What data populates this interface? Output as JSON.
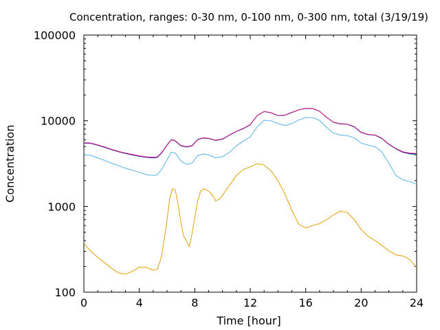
{
  "chart_data": {
    "type": "line",
    "title": "Concentration, ranges: 0-30 nm, 0-100 nm, 0-300 nm, total (3/19/19)",
    "xlabel": "Time [hour]",
    "ylabel": "Concentration",
    "xlim": [
      0,
      24
    ],
    "ylim": [
      100,
      100000
    ],
    "yscale": "log",
    "grid": false,
    "x_ticks": [
      0,
      4,
      8,
      12,
      16,
      20,
      24
    ],
    "x_tick_labels": [
      "0",
      "4",
      "8",
      "12",
      "16",
      "20",
      "24"
    ],
    "y_ticks": [
      100,
      1000,
      10000,
      100000
    ],
    "y_tick_labels": [
      "100",
      "1000",
      "10000",
      "100000"
    ],
    "series": [
      {
        "color": "#e69f00",
        "points": [
          [
            0,
            370
          ],
          [
            0.5,
            300
          ],
          [
            1,
            255
          ],
          [
            1.5,
            220
          ],
          [
            2,
            190
          ],
          [
            2.5,
            168
          ],
          [
            3,
            162
          ],
          [
            3.5,
            175
          ],
          [
            4,
            196
          ],
          [
            4.5,
            195
          ],
          [
            5,
            180
          ],
          [
            5.3,
            185
          ],
          [
            5.6,
            260
          ],
          [
            5.8,
            420
          ],
          [
            6,
            700
          ],
          [
            6.2,
            1250
          ],
          [
            6.4,
            1620
          ],
          [
            6.6,
            1550
          ],
          [
            6.8,
            1050
          ],
          [
            7,
            650
          ],
          [
            7.2,
            450
          ],
          [
            7.4,
            400
          ],
          [
            7.6,
            340
          ],
          [
            7.8,
            480
          ],
          [
            8,
            750
          ],
          [
            8.2,
            1150
          ],
          [
            8.4,
            1480
          ],
          [
            8.6,
            1600
          ],
          [
            8.8,
            1580
          ],
          [
            9,
            1500
          ],
          [
            9.3,
            1350
          ],
          [
            9.5,
            1160
          ],
          [
            9.8,
            1230
          ],
          [
            10,
            1350
          ],
          [
            10.3,
            1600
          ],
          [
            10.6,
            1850
          ],
          [
            11,
            2300
          ],
          [
            11.5,
            2700
          ],
          [
            12,
            2900
          ],
          [
            12.5,
            3150
          ],
          [
            13,
            3050
          ],
          [
            13.5,
            2600
          ],
          [
            14,
            2000
          ],
          [
            14.5,
            1400
          ],
          [
            15,
            900
          ],
          [
            15.5,
            620
          ],
          [
            16,
            560
          ],
          [
            16.5,
            600
          ],
          [
            17,
            630
          ],
          [
            17.5,
            700
          ],
          [
            18,
            800
          ],
          [
            18.5,
            880
          ],
          [
            19,
            850
          ],
          [
            19.5,
            700
          ],
          [
            20,
            540
          ],
          [
            20.5,
            450
          ],
          [
            21,
            400
          ],
          [
            21.5,
            350
          ],
          [
            22,
            305
          ],
          [
            22.5,
            272
          ],
          [
            23,
            265
          ],
          [
            23.5,
            240
          ],
          [
            24,
            195
          ]
        ]
      },
      {
        "color": "#56b4e9",
        "points": [
          [
            0,
            4000
          ],
          [
            0.5,
            3950
          ],
          [
            1,
            3700
          ],
          [
            1.5,
            3450
          ],
          [
            2,
            3200
          ],
          [
            2.5,
            3000
          ],
          [
            3,
            2800
          ],
          [
            3.5,
            2650
          ],
          [
            4,
            2500
          ],
          [
            4.5,
            2350
          ],
          [
            5,
            2300
          ],
          [
            5.3,
            2350
          ],
          [
            5.6,
            2700
          ],
          [
            6,
            3500
          ],
          [
            6.3,
            4300
          ],
          [
            6.6,
            4200
          ],
          [
            7,
            3400
          ],
          [
            7.4,
            3100
          ],
          [
            7.8,
            3200
          ],
          [
            8.2,
            3900
          ],
          [
            8.6,
            4100
          ],
          [
            9,
            4000
          ],
          [
            9.5,
            3700
          ],
          [
            10,
            3800
          ],
          [
            10.5,
            4300
          ],
          [
            11,
            5100
          ],
          [
            11.5,
            5800
          ],
          [
            12,
            6500
          ],
          [
            12.5,
            8500
          ],
          [
            13,
            10100
          ],
          [
            13.5,
            10000
          ],
          [
            14,
            9300
          ],
          [
            14.5,
            8800
          ],
          [
            15,
            9300
          ],
          [
            15.5,
            10200
          ],
          [
            16,
            10900
          ],
          [
            16.5,
            10900
          ],
          [
            17,
            10100
          ],
          [
            17.5,
            8400
          ],
          [
            18,
            7200
          ],
          [
            18.5,
            6800
          ],
          [
            19,
            6700
          ],
          [
            19.5,
            6300
          ],
          [
            20,
            5500
          ],
          [
            20.5,
            5200
          ],
          [
            21,
            5000
          ],
          [
            21.5,
            4300
          ],
          [
            22,
            3200
          ],
          [
            22.5,
            2300
          ],
          [
            23,
            2050
          ],
          [
            23.5,
            1950
          ],
          [
            24,
            1830
          ]
        ]
      },
      {
        "color": "#009e73",
        "points": [
          [
            0,
            5500
          ],
          [
            0.5,
            5450
          ],
          [
            1,
            5200
          ],
          [
            1.5,
            4900
          ],
          [
            2,
            4600
          ],
          [
            2.5,
            4350
          ],
          [
            3,
            4150
          ],
          [
            3.5,
            4000
          ],
          [
            4,
            3850
          ],
          [
            4.5,
            3750
          ],
          [
            5,
            3700
          ],
          [
            5.3,
            3750
          ],
          [
            5.6,
            4200
          ],
          [
            6,
            5200
          ],
          [
            6.3,
            6000
          ],
          [
            6.6,
            5800
          ],
          [
            7,
            5100
          ],
          [
            7.4,
            4950
          ],
          [
            7.8,
            5100
          ],
          [
            8.2,
            6000
          ],
          [
            8.6,
            6300
          ],
          [
            9,
            6200
          ],
          [
            9.5,
            5900
          ],
          [
            10,
            6100
          ],
          [
            10.5,
            6800
          ],
          [
            11,
            7500
          ],
          [
            11.5,
            8100
          ],
          [
            12,
            9000
          ],
          [
            12.5,
            11500
          ],
          [
            13,
            12800
          ],
          [
            13.5,
            12400
          ],
          [
            14,
            11500
          ],
          [
            14.5,
            11600
          ],
          [
            15,
            12500
          ],
          [
            15.5,
            13400
          ],
          [
            16,
            13900
          ],
          [
            16.5,
            13900
          ],
          [
            17,
            12900
          ],
          [
            17.5,
            11000
          ],
          [
            18,
            9600
          ],
          [
            18.5,
            9200
          ],
          [
            19,
            9100
          ],
          [
            19.5,
            8500
          ],
          [
            20,
            7300
          ],
          [
            20.5,
            6900
          ],
          [
            21,
            6800
          ],
          [
            21.5,
            6200
          ],
          [
            22,
            5300
          ],
          [
            22.5,
            4700
          ],
          [
            23,
            4300
          ],
          [
            23.5,
            4100
          ],
          [
            24,
            4000
          ]
        ]
      },
      {
        "color": "#0000aa",
        "points": [
          [
            0,
            5500
          ],
          [
            0.5,
            5450
          ],
          [
            1,
            5200
          ],
          [
            1.5,
            4900
          ],
          [
            2,
            4600
          ],
          [
            2.5,
            4350
          ],
          [
            3,
            4150
          ],
          [
            3.5,
            4000
          ],
          [
            4,
            3850
          ],
          [
            4.5,
            3750
          ],
          [
            5,
            3700
          ],
          [
            5.3,
            3750
          ],
          [
            5.6,
            4200
          ],
          [
            6,
            5200
          ],
          [
            6.3,
            6000
          ],
          [
            6.6,
            5800
          ],
          [
            7,
            5100
          ],
          [
            7.4,
            4950
          ],
          [
            7.8,
            5100
          ],
          [
            8.2,
            6000
          ],
          [
            8.6,
            6300
          ],
          [
            9,
            6200
          ],
          [
            9.5,
            5900
          ],
          [
            10,
            6100
          ],
          [
            10.5,
            6800
          ],
          [
            11,
            7500
          ],
          [
            11.5,
            8100
          ],
          [
            12,
            9000
          ],
          [
            12.5,
            11500
          ],
          [
            13,
            12800
          ],
          [
            13.5,
            12400
          ],
          [
            14,
            11500
          ],
          [
            14.5,
            11600
          ],
          [
            15,
            12500
          ],
          [
            15.5,
            13400
          ],
          [
            16,
            13900
          ],
          [
            16.5,
            13900
          ],
          [
            17,
            12900
          ],
          [
            17.5,
            11000
          ],
          [
            18,
            9600
          ],
          [
            18.5,
            9200
          ],
          [
            19,
            9100
          ],
          [
            19.5,
            8500
          ],
          [
            20,
            7300
          ],
          [
            20.5,
            6900
          ],
          [
            21,
            6800
          ],
          [
            21.5,
            6200
          ],
          [
            22,
            5300
          ],
          [
            22.5,
            4700
          ],
          [
            23,
            4300
          ],
          [
            23.5,
            4150
          ],
          [
            24,
            4100
          ]
        ]
      },
      {
        "color": "#e7298a",
        "points": [
          [
            0,
            5550
          ],
          [
            0.5,
            5500
          ],
          [
            1,
            5250
          ],
          [
            1.5,
            4950
          ],
          [
            2,
            4650
          ],
          [
            2.5,
            4400
          ],
          [
            3,
            4200
          ],
          [
            3.5,
            4050
          ],
          [
            4,
            3900
          ],
          [
            4.5,
            3800
          ],
          [
            5,
            3750
          ],
          [
            5.3,
            3800
          ],
          [
            5.6,
            4250
          ],
          [
            6,
            5250
          ],
          [
            6.3,
            6050
          ],
          [
            6.6,
            5850
          ],
          [
            7,
            5150
          ],
          [
            7.4,
            5000
          ],
          [
            7.8,
            5150
          ],
          [
            8.2,
            6050
          ],
          [
            8.6,
            6350
          ],
          [
            9,
            6250
          ],
          [
            9.5,
            5950
          ],
          [
            10,
            6150
          ],
          [
            10.5,
            6850
          ],
          [
            11,
            7550
          ],
          [
            11.5,
            8150
          ],
          [
            12,
            9050
          ],
          [
            12.5,
            11550
          ],
          [
            13,
            12850
          ],
          [
            13.5,
            12450
          ],
          [
            14,
            11550
          ],
          [
            14.5,
            11650
          ],
          [
            15,
            12550
          ],
          [
            15.5,
            13450
          ],
          [
            16,
            13950
          ],
          [
            16.5,
            13950
          ],
          [
            17,
            12950
          ],
          [
            17.5,
            11050
          ],
          [
            18,
            9650
          ],
          [
            18.5,
            9250
          ],
          [
            19,
            9150
          ],
          [
            19.5,
            8550
          ],
          [
            20,
            7350
          ],
          [
            20.5,
            6950
          ],
          [
            21,
            6850
          ],
          [
            21.5,
            6250
          ],
          [
            22,
            5350
          ],
          [
            22.5,
            4750
          ],
          [
            23,
            4350
          ],
          [
            23.5,
            4200
          ],
          [
            24,
            4150
          ]
        ]
      }
    ]
  }
}
